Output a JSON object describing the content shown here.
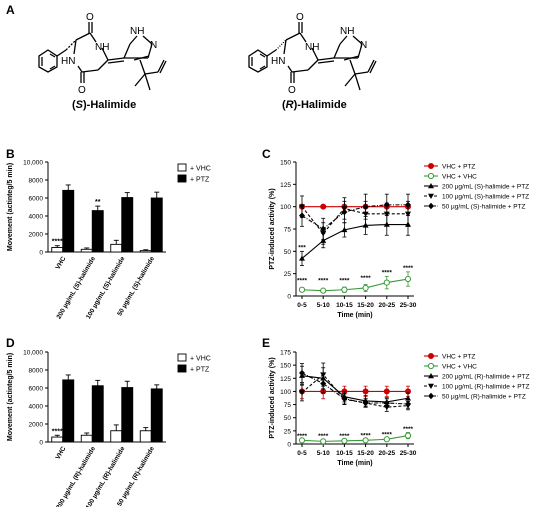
{
  "panel_labels": {
    "a": "A",
    "b": "B",
    "c": "C",
    "d": "D",
    "e": "E"
  },
  "structures": [
    {
      "name_prefix": "(",
      "name_stereo": "S",
      "name_suffix": ")-Halimide"
    },
    {
      "name_prefix": "(",
      "name_stereo": "R",
      "name_suffix": ")-Halimide"
    }
  ],
  "atoms": {
    "o_top": "O",
    "o_bottom": "O",
    "nh_right": "NH",
    "hn_left": "HN",
    "nh_imid": "NH",
    "n_imid": "N"
  },
  "colors": {
    "red": "#cc0000",
    "green": "#3a9a3a",
    "black": "#000000",
    "white": "#ffffff"
  },
  "chart_data": [
    {
      "type": "bar",
      "panel": "B",
      "ylabel": "Movement (actinteg/5 min)",
      "ylim": [
        0,
        10000
      ],
      "yticks": [
        "0",
        "2000",
        "4000",
        "6000",
        "8000",
        "10,000"
      ],
      "categories": [
        "VHC",
        "200 µg/mL (S)-halimide",
        "100 µg/mL (S)-halimide",
        "50 µg/mL (S)-halimide"
      ],
      "series": [
        {
          "name": "+ VHC",
          "color": "#ffffff",
          "values": [
            500,
            300,
            850,
            150
          ],
          "errors": [
            200,
            150,
            450,
            100
          ]
        },
        {
          "name": "+ PTZ",
          "color": "#000000",
          "values": [
            6850,
            4600,
            6050,
            6000
          ],
          "errors": [
            600,
            500,
            550,
            650
          ]
        }
      ],
      "annotations": [
        {
          "category": 0,
          "series": 0,
          "text": "****"
        },
        {
          "category": 1,
          "series": 1,
          "text": "**"
        }
      ]
    },
    {
      "type": "line",
      "panel": "C",
      "xlabel": "Time (min)",
      "ylabel": "PTZ-induced activity (%)",
      "ylim": [
        0,
        150
      ],
      "yticks": [
        "0",
        "25",
        "50",
        "75",
        "100",
        "125",
        "150"
      ],
      "x": [
        "0-5",
        "5-10",
        "10-15",
        "15-20",
        "20-25",
        "25-30"
      ],
      "series": [
        {
          "name": "VHC + PTZ",
          "marker": "circle",
          "color": "#cc0000",
          "dash": "solid",
          "values": [
            100,
            100,
            100,
            100,
            100,
            100
          ],
          "errors": [
            0,
            0,
            0,
            0,
            0,
            0
          ]
        },
        {
          "name": "VHC + VHC",
          "marker": "circle-open",
          "color": "#3a9a3a",
          "dash": "solid",
          "values": [
            7,
            6,
            7,
            9,
            15,
            19
          ],
          "errors": [
            2,
            2,
            3,
            4,
            7,
            8
          ]
        },
        {
          "name": "200 µg/mL (S)-halimide + PTZ",
          "marker": "triangle-up",
          "color": "#000000",
          "dash": "solid",
          "values": [
            42,
            62,
            74,
            79,
            80,
            80
          ],
          "errors": [
            8,
            8,
            8,
            10,
            12,
            12
          ]
        },
        {
          "name": "100 µg/mL (S)-halimide + PTZ",
          "marker": "triangle-down",
          "color": "#000000",
          "dash": "dashed",
          "values": [
            100,
            70,
            98,
            92,
            92,
            92
          ],
          "errors": [
            12,
            12,
            12,
            14,
            12,
            14
          ]
        },
        {
          "name": "50 µg/mL (S)-halimide + PTZ",
          "marker": "diamond",
          "color": "#000000",
          "dash": "dashdot",
          "values": [
            90,
            75,
            94,
            100,
            102,
            102
          ],
          "errors": [
            12,
            12,
            12,
            14,
            12,
            12
          ]
        }
      ],
      "annotations": [
        {
          "x": "0-5",
          "y": 52,
          "text": "***"
        },
        {
          "x": "0-5",
          "y": 15,
          "text": "****"
        },
        {
          "x": "5-10",
          "y": 15,
          "text": "****"
        },
        {
          "x": "10-15",
          "y": 15,
          "text": "****"
        },
        {
          "x": "15-20",
          "y": 18,
          "text": "****"
        },
        {
          "x": "20-25",
          "y": 24,
          "text": "****"
        },
        {
          "x": "25-30",
          "y": 29,
          "text": "****"
        }
      ]
    },
    {
      "type": "bar",
      "panel": "D",
      "ylabel": "Movement (actinteg/5 min)",
      "ylim": [
        0,
        10000
      ],
      "yticks": [
        "0",
        "2000",
        "4000",
        "6000",
        "8000",
        "10,000"
      ],
      "categories": [
        "VHC",
        "200 µg/mL (R)-halimide",
        "100 µg/mL (R)-halimide",
        "50 µg/mL (R)-halimide"
      ],
      "series": [
        {
          "name": "+ VHC",
          "color": "#ffffff",
          "values": [
            550,
            750,
            1250,
            1250
          ],
          "errors": [
            200,
            250,
            650,
            350
          ]
        },
        {
          "name": "+ PTZ",
          "color": "#000000",
          "values": [
            6900,
            6250,
            6050,
            5900
          ],
          "errors": [
            550,
            600,
            700,
            450
          ]
        }
      ],
      "annotations": [
        {
          "category": 0,
          "series": 0,
          "text": "****"
        }
      ]
    },
    {
      "type": "line",
      "panel": "E",
      "xlabel": "Time (min)",
      "ylabel": "PTZ-induced activity (%)",
      "ylim": [
        0,
        175
      ],
      "yticks": [
        "0",
        "25",
        "50",
        "75",
        "100",
        "125",
        "150",
        "175"
      ],
      "x": [
        "0-5",
        "5-10",
        "10-15",
        "15-20",
        "20-25",
        "25-30"
      ],
      "series": [
        {
          "name": "VHC + PTZ",
          "marker": "circle",
          "color": "#cc0000",
          "dash": "solid",
          "values": [
            100,
            100,
            100,
            100,
            100,
            100
          ],
          "errors": [
            14,
            14,
            10,
            10,
            10,
            10
          ]
        },
        {
          "name": "VHC + VHC",
          "marker": "circle-open",
          "color": "#3a9a3a",
          "dash": "solid",
          "values": [
            7,
            5,
            6,
            7,
            9,
            16
          ],
          "errors": [
            2,
            2,
            2,
            3,
            3,
            6
          ]
        },
        {
          "name": "200 µg/mL (R)-halimide + PTZ",
          "marker": "triangle-up",
          "color": "#000000",
          "dash": "solid",
          "values": [
            130,
            125,
            90,
            82,
            80,
            87
          ],
          "errors": [
            18,
            20,
            10,
            10,
            8,
            10
          ]
        },
        {
          "name": "100 µg/mL (R)-halimide + PTZ",
          "marker": "triangle-down",
          "color": "#000000",
          "dash": "dashed",
          "values": [
            98,
            132,
            85,
            78,
            70,
            73
          ],
          "errors": [
            16,
            22,
            10,
            8,
            8,
            8
          ]
        },
        {
          "name": "50 µg/mL (R)-halimide + PTZ",
          "marker": "diamond",
          "color": "#000000",
          "dash": "dashdot",
          "values": [
            135,
            115,
            86,
            78,
            78,
            76
          ],
          "errors": [
            18,
            18,
            10,
            8,
            8,
            8
          ]
        }
      ],
      "annotations": [
        {
          "x": "0-5",
          "y": 11,
          "text": "****"
        },
        {
          "x": "5-10",
          "y": 11,
          "text": "****"
        },
        {
          "x": "10-15",
          "y": 11,
          "text": "****"
        },
        {
          "x": "15-20",
          "y": 12,
          "text": "****"
        },
        {
          "x": "20-25",
          "y": 14,
          "text": "****"
        },
        {
          "x": "25-30",
          "y": 25,
          "text": "****"
        }
      ]
    }
  ]
}
